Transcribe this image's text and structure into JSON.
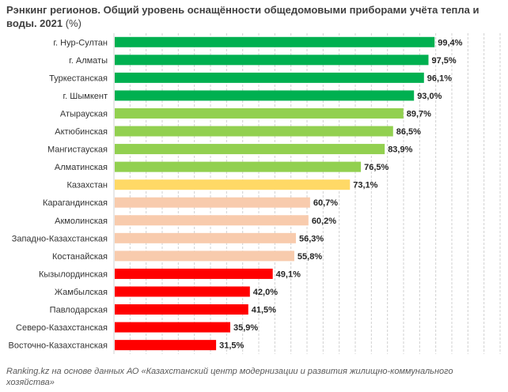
{
  "chart_data": {
    "type": "bar",
    "orientation": "horizontal",
    "title": "Рэнкинг регионов. Общий уровень оснащённости общедомовыми приборами учёта тепла и воды. 2021",
    "title_unit": "(%)",
    "categories": [
      "г. Нур-Султан",
      "г. Алматы",
      "Туркестанская",
      "г. Шымкент",
      "Атырауская",
      "Актюбинская",
      "Мангистауская",
      "Алматинская",
      "Казахстан",
      "Карагандинская",
      "Акмолинская",
      "Западно-Казахстанская",
      "Костанайская",
      "Кызылординская",
      "Жамбылская",
      "Павлодарская",
      "Северо-Казахстанская",
      "Восточно-Казахстанская"
    ],
    "values": [
      99.4,
      97.5,
      96.1,
      93.0,
      89.7,
      86.5,
      83.9,
      76.5,
      73.1,
      60.7,
      60.2,
      56.3,
      55.8,
      49.1,
      42.0,
      41.5,
      35.9,
      31.5
    ],
    "value_labels": [
      "99,4%",
      "97,5%",
      "96,1%",
      "93,0%",
      "89,7%",
      "86,5%",
      "83,9%",
      "76,5%",
      "73,1%",
      "60,7%",
      "60,2%",
      "56,3%",
      "55,8%",
      "49,1%",
      "42,0%",
      "41,5%",
      "35,9%",
      "31,5%"
    ],
    "bar_colors": [
      "#00b050",
      "#00b050",
      "#00b050",
      "#00b050",
      "#92d050",
      "#92d050",
      "#92d050",
      "#92d050",
      "#ffd966",
      "#f8cbad",
      "#f8cbad",
      "#f8cbad",
      "#f8cbad",
      "#ff0000",
      "#ff0000",
      "#ff0000",
      "#ff0000",
      "#ff0000"
    ],
    "xlim": [
      0,
      120
    ],
    "grid": "vertical dashed",
    "legend": "none"
  },
  "source": "Ranking.kz на основе данных АО «Казахстанский центр модернизации и развития жилищно-коммунального хозяйства»"
}
